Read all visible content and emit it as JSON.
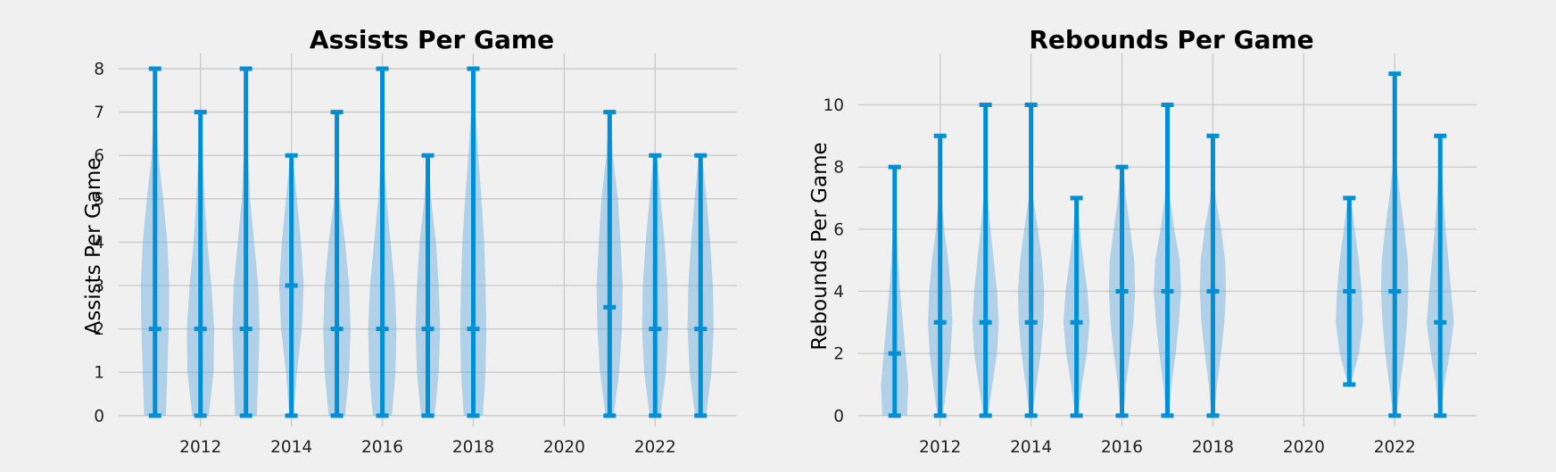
{
  "chart_data": [
    {
      "type": "violin",
      "title": "Assists Per Game",
      "xlabel": "",
      "ylabel": "Assists Per Game",
      "xlim": [
        2010.2,
        2023.8
      ],
      "ylim": [
        -0.25,
        8.35
      ],
      "xticks": [
        2012,
        2014,
        2016,
        2018,
        2020,
        2022
      ],
      "yticks": [
        0,
        1,
        2,
        3,
        4,
        5,
        6,
        7,
        8
      ],
      "grid": true,
      "series": [
        {
          "x": 2011,
          "min": 0,
          "median": 2,
          "max": 8,
          "width": [
            0.4,
            0.45,
            0.5,
            0.52,
            0.45,
            0.3,
            0.12,
            0.05,
            0.02
          ]
        },
        {
          "x": 2012,
          "min": 0,
          "median": 2,
          "max": 7,
          "width": [
            0.3,
            0.48,
            0.5,
            0.4,
            0.25,
            0.15,
            0.08,
            0.03
          ]
        },
        {
          "x": 2013,
          "min": 0,
          "median": 2,
          "max": 8,
          "width": [
            0.4,
            0.45,
            0.5,
            0.45,
            0.3,
            0.15,
            0.08,
            0.04,
            0.02
          ]
        },
        {
          "x": 2014,
          "min": 0,
          "median": 3,
          "max": 6,
          "width": [
            0.08,
            0.2,
            0.38,
            0.45,
            0.35,
            0.2,
            0.05
          ]
        },
        {
          "x": 2015,
          "min": 0,
          "median": 2,
          "max": 7,
          "width": [
            0.3,
            0.45,
            0.5,
            0.45,
            0.3,
            0.1,
            0.04,
            0.02
          ]
        },
        {
          "x": 2016,
          "min": 0,
          "median": 2,
          "max": 8,
          "width": [
            0.35,
            0.48,
            0.52,
            0.45,
            0.3,
            0.15,
            0.06,
            0.03,
            0.02
          ]
        },
        {
          "x": 2017,
          "min": 0,
          "median": 2,
          "max": 6,
          "width": [
            0.25,
            0.4,
            0.45,
            0.4,
            0.3,
            0.12,
            0.04
          ]
        },
        {
          "x": 2018,
          "min": 0,
          "median": 2,
          "max": 8,
          "width": [
            0.35,
            0.45,
            0.48,
            0.45,
            0.4,
            0.3,
            0.18,
            0.08,
            0.03
          ]
        },
        {
          "x": 2021,
          "min": 0,
          "median": 2.5,
          "max": 7,
          "width": [
            0.15,
            0.35,
            0.45,
            0.48,
            0.4,
            0.3,
            0.12,
            0.04
          ]
        },
        {
          "x": 2022,
          "min": 0,
          "median": 2,
          "max": 6,
          "width": [
            0.2,
            0.4,
            0.48,
            0.45,
            0.35,
            0.2,
            0.06
          ]
        },
        {
          "x": 2023,
          "min": 0,
          "median": 2,
          "max": 6,
          "width": [
            0.2,
            0.4,
            0.48,
            0.45,
            0.35,
            0.22,
            0.06
          ]
        }
      ]
    },
    {
      "type": "violin",
      "title": "Rebounds Per Game",
      "xlabel": "",
      "ylabel": "Rebounds Per Game",
      "xlim": [
        2010.2,
        2023.8
      ],
      "ylim": [
        -0.35,
        11.65
      ],
      "xticks": [
        2012,
        2014,
        2016,
        2018,
        2020,
        2022
      ],
      "yticks": [
        0,
        2,
        4,
        6,
        8,
        10
      ],
      "grid": true,
      "series": [
        {
          "x": 2011,
          "min": 0,
          "median": 2,
          "max": 8,
          "width": [
            0.45,
            0.5,
            0.4,
            0.3,
            0.2,
            0.12,
            0.06,
            0.03,
            0.02
          ]
        },
        {
          "x": 2012,
          "min": 0,
          "median": 3,
          "max": 9,
          "width": [
            0.1,
            0.25,
            0.38,
            0.45,
            0.4,
            0.3,
            0.15,
            0.06,
            0.03,
            0.02
          ]
        },
        {
          "x": 2013,
          "min": 0,
          "median": 3,
          "max": 10,
          "width": [
            0.08,
            0.25,
            0.42,
            0.48,
            0.42,
            0.3,
            0.18,
            0.08,
            0.04,
            0.02,
            0.01
          ]
        },
        {
          "x": 2014,
          "min": 0,
          "median": 3,
          "max": 10,
          "width": [
            0.05,
            0.2,
            0.35,
            0.45,
            0.48,
            0.4,
            0.25,
            0.08,
            0.03,
            0.02,
            0.01
          ]
        },
        {
          "x": 2015,
          "min": 0,
          "median": 3,
          "max": 7,
          "width": [
            0.05,
            0.2,
            0.38,
            0.48,
            0.4,
            0.25,
            0.12,
            0.04
          ]
        },
        {
          "x": 2016,
          "min": 0,
          "median": 4,
          "max": 8,
          "width": [
            0.05,
            0.15,
            0.3,
            0.42,
            0.48,
            0.45,
            0.3,
            0.15,
            0.05
          ]
        },
        {
          "x": 2017,
          "min": 0,
          "median": 4,
          "max": 10,
          "width": [
            0.05,
            0.15,
            0.3,
            0.42,
            0.5,
            0.45,
            0.25,
            0.1,
            0.04,
            0.02,
            0.01
          ]
        },
        {
          "x": 2018,
          "min": 0,
          "median": 4,
          "max": 9,
          "width": [
            0.05,
            0.15,
            0.3,
            0.42,
            0.48,
            0.45,
            0.3,
            0.1,
            0.04,
            0.02
          ]
        },
        {
          "x": 2021,
          "min": 1,
          "median": 4,
          "max": 7,
          "width": [
            0.05,
            0.35,
            0.5,
            0.45,
            0.35,
            0.2,
            0.06
          ]
        },
        {
          "x": 2022,
          "min": 0,
          "median": 4,
          "max": 11,
          "width": [
            0.05,
            0.2,
            0.35,
            0.45,
            0.5,
            0.48,
            0.35,
            0.2,
            0.08,
            0.04,
            0.02,
            0.01
          ]
        },
        {
          "x": 2023,
          "min": 0,
          "median": 3,
          "max": 9,
          "width": [
            0.05,
            0.15,
            0.35,
            0.5,
            0.4,
            0.3,
            0.2,
            0.12,
            0.05,
            0.02
          ]
        }
      ]
    }
  ]
}
